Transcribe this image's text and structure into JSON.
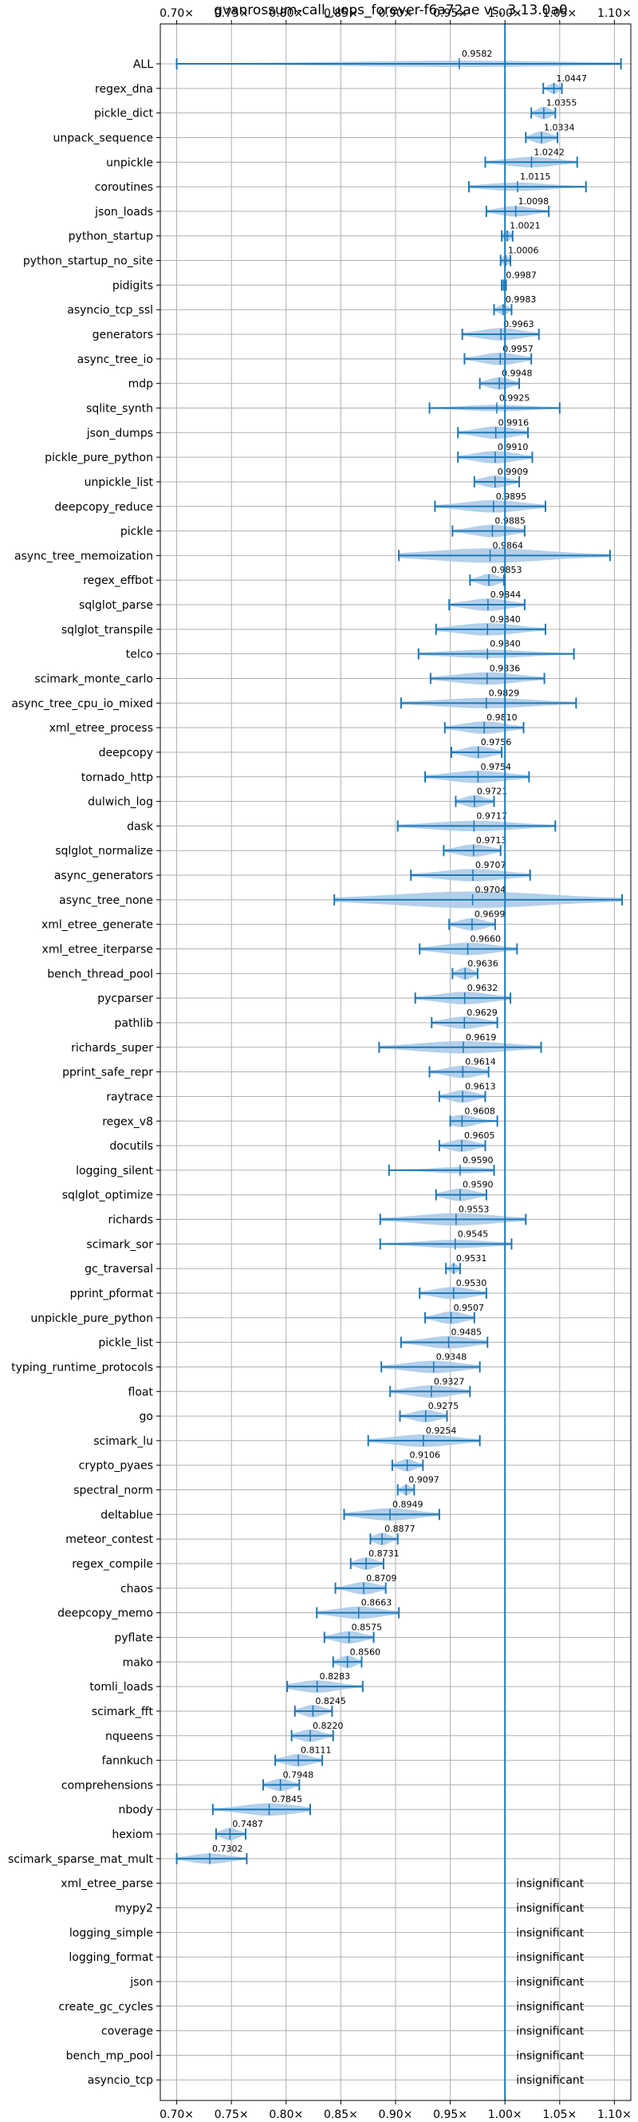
{
  "chart_data": {
    "type": "violin",
    "title": "gvanrossum-call_uops_forever-f6a72ae vs. 3.13.0a0",
    "xlim": [
      0.685,
      1.115
    ],
    "x_ticks": [
      0.7,
      0.75,
      0.8,
      0.85,
      0.9,
      0.95,
      1.0,
      1.05,
      1.1
    ],
    "x_tick_labels": [
      "0.70×",
      "0.75×",
      "0.80×",
      "0.85×",
      "0.90×",
      "0.95×",
      "1.00×",
      "1.05×",
      "1.10×"
    ],
    "reference_line": 1.0,
    "grid": true,
    "colors": {
      "violin": "#a6c8e8",
      "line": "#1f77b4",
      "grid": "#b0b0b0"
    },
    "insignificant_label": "insignificant",
    "benchmarks": [
      {
        "name": "ALL",
        "value": 0.9582,
        "label": "0.9582",
        "min": 0.7,
        "max": 1.106,
        "width": 0.25
      },
      {
        "name": "regex_dna",
        "value": 1.0447,
        "label": "1.0447",
        "min": 1.035,
        "max": 1.052,
        "width": 0.5
      },
      {
        "name": "pickle_dict",
        "value": 1.0355,
        "label": "1.0355",
        "min": 1.024,
        "max": 1.046,
        "width": 0.6
      },
      {
        "name": "unpack_sequence",
        "value": 1.0334,
        "label": "1.0334",
        "min": 1.019,
        "max": 1.048,
        "width": 0.6
      },
      {
        "name": "unpickle",
        "value": 1.0242,
        "label": "1.0242",
        "min": 0.982,
        "max": 1.066,
        "width": 0.5
      },
      {
        "name": "coroutines",
        "value": 1.0115,
        "label": "1.0115",
        "min": 0.967,
        "max": 1.074,
        "width": 0.4
      },
      {
        "name": "json_loads",
        "value": 1.0098,
        "label": "1.0098",
        "min": 0.983,
        "max": 1.04,
        "width": 0.5
      },
      {
        "name": "python_startup",
        "value": 1.0021,
        "label": "1.0021",
        "min": 0.997,
        "max": 1.007,
        "width": 0.5
      },
      {
        "name": "python_startup_no_site",
        "value": 1.0006,
        "label": "1.0006",
        "min": 0.996,
        "max": 1.005,
        "width": 0.5
      },
      {
        "name": "pidigits",
        "value": 0.9987,
        "label": "0.9987",
        "min": 0.997,
        "max": 1.001,
        "width": 0.5
      },
      {
        "name": "asyncio_tcp_ssl",
        "value": 0.9983,
        "label": "0.9983",
        "min": 0.99,
        "max": 1.006,
        "width": 0.5
      },
      {
        "name": "generators",
        "value": 0.9963,
        "label": "0.9963",
        "min": 0.961,
        "max": 1.031,
        "width": 0.6
      },
      {
        "name": "async_tree_io",
        "value": 0.9957,
        "label": "0.9957",
        "min": 0.963,
        "max": 1.024,
        "width": 0.6
      },
      {
        "name": "mdp",
        "value": 0.9948,
        "label": "0.9948",
        "min": 0.977,
        "max": 1.013,
        "width": 0.6
      },
      {
        "name": "sqlite_synth",
        "value": 0.9925,
        "label": "0.9925",
        "min": 0.931,
        "max": 1.05,
        "width": 0.3
      },
      {
        "name": "json_dumps",
        "value": 0.9916,
        "label": "0.9916",
        "min": 0.957,
        "max": 1.021,
        "width": 0.6
      },
      {
        "name": "pickle_pure_python",
        "value": 0.991,
        "label": "0.9910",
        "min": 0.957,
        "max": 1.025,
        "width": 0.6
      },
      {
        "name": "unpickle_list",
        "value": 0.9909,
        "label": "0.9909",
        "min": 0.972,
        "max": 1.013,
        "width": 0.6
      },
      {
        "name": "deepcopy_reduce",
        "value": 0.9895,
        "label": "0.9895",
        "min": 0.936,
        "max": 1.037,
        "width": 0.6
      },
      {
        "name": "pickle",
        "value": 0.9885,
        "label": "0.9885",
        "min": 0.952,
        "max": 1.018,
        "width": 0.6
      },
      {
        "name": "async_tree_memoization",
        "value": 0.9864,
        "label": "0.9864",
        "min": 0.903,
        "max": 1.096,
        "width": 0.7
      },
      {
        "name": "regex_effbot",
        "value": 0.9853,
        "label": "0.9853",
        "min": 0.968,
        "max": 0.999,
        "width": 0.6
      },
      {
        "name": "sqlglot_parse",
        "value": 0.9844,
        "label": "0.9844",
        "min": 0.949,
        "max": 1.018,
        "width": 0.6
      },
      {
        "name": "sqlglot_transpile",
        "value": 0.984,
        "label": "0.9840",
        "min": 0.937,
        "max": 1.037,
        "width": 0.6
      },
      {
        "name": "telco",
        "value": 0.984,
        "label": "0.9840",
        "min": 0.921,
        "max": 1.063,
        "width": 0.4
      },
      {
        "name": "scimark_monte_carlo",
        "value": 0.9836,
        "label": "0.9836",
        "min": 0.932,
        "max": 1.036,
        "width": 0.6
      },
      {
        "name": "async_tree_cpu_io_mixed",
        "value": 0.9829,
        "label": "0.9829",
        "min": 0.905,
        "max": 1.065,
        "width": 0.5
      },
      {
        "name": "xml_etree_process",
        "value": 0.981,
        "label": "0.9810",
        "min": 0.945,
        "max": 1.017,
        "width": 0.6
      },
      {
        "name": "deepcopy",
        "value": 0.9756,
        "label": "0.9756",
        "min": 0.951,
        "max": 0.997,
        "width": 0.6
      },
      {
        "name": "tornado_http",
        "value": 0.9754,
        "label": "0.9754",
        "min": 0.927,
        "max": 1.022,
        "width": 0.6
      },
      {
        "name": "dulwich_log",
        "value": 0.9721,
        "label": "0.9721",
        "min": 0.955,
        "max": 0.99,
        "width": 0.6
      },
      {
        "name": "dask",
        "value": 0.9717,
        "label": "0.9717",
        "min": 0.902,
        "max": 1.046,
        "width": 0.5
      },
      {
        "name": "sqlglot_normalize",
        "value": 0.9713,
        "label": "0.9713",
        "min": 0.944,
        "max": 0.996,
        "width": 0.6
      },
      {
        "name": "async_generators",
        "value": 0.9707,
        "label": "0.9707",
        "min": 0.914,
        "max": 1.023,
        "width": 0.6
      },
      {
        "name": "async_tree_none",
        "value": 0.9704,
        "label": "0.9704",
        "min": 0.844,
        "max": 1.107,
        "width": 0.8
      },
      {
        "name": "xml_etree_generate",
        "value": 0.9699,
        "label": "0.9699",
        "min": 0.949,
        "max": 0.991,
        "width": 0.6
      },
      {
        "name": "xml_etree_iterparse",
        "value": 0.966,
        "label": "0.9660",
        "min": 0.922,
        "max": 1.011,
        "width": 0.6
      },
      {
        "name": "bench_thread_pool",
        "value": 0.9636,
        "label": "0.9636",
        "min": 0.952,
        "max": 0.975,
        "width": 0.6
      },
      {
        "name": "pycparser",
        "value": 0.9632,
        "label": "0.9632",
        "min": 0.918,
        "max": 1.005,
        "width": 0.6
      },
      {
        "name": "pathlib",
        "value": 0.9629,
        "label": "0.9629",
        "min": 0.933,
        "max": 0.993,
        "width": 0.6
      },
      {
        "name": "richards_super",
        "value": 0.9619,
        "label": "0.9619",
        "min": 0.885,
        "max": 1.033,
        "width": 0.6
      },
      {
        "name": "pprint_safe_repr",
        "value": 0.9614,
        "label": "0.9614",
        "min": 0.931,
        "max": 0.985,
        "width": 0.6
      },
      {
        "name": "raytrace",
        "value": 0.9613,
        "label": "0.9613",
        "min": 0.94,
        "max": 0.982,
        "width": 0.6
      },
      {
        "name": "regex_v8",
        "value": 0.9608,
        "label": "0.9608",
        "min": 0.95,
        "max": 0.993,
        "width": 0.6
      },
      {
        "name": "docutils",
        "value": 0.9605,
        "label": "0.9605",
        "min": 0.94,
        "max": 0.982,
        "width": 0.6
      },
      {
        "name": "logging_silent",
        "value": 0.959,
        "label": "0.9590",
        "min": 0.894,
        "max": 0.99,
        "width": 0.3
      },
      {
        "name": "sqlglot_optimize",
        "value": 0.959,
        "label": "0.9590",
        "min": 0.937,
        "max": 0.983,
        "width": 0.6
      },
      {
        "name": "richards",
        "value": 0.9553,
        "label": "0.9553",
        "min": 0.886,
        "max": 1.019,
        "width": 0.6
      },
      {
        "name": "scimark_sor",
        "value": 0.9545,
        "label": "0.9545",
        "min": 0.886,
        "max": 1.006,
        "width": 0.4
      },
      {
        "name": "gc_traversal",
        "value": 0.9531,
        "label": "0.9531",
        "min": 0.946,
        "max": 0.959,
        "width": 0.5
      },
      {
        "name": "pprint_pformat",
        "value": 0.953,
        "label": "0.9530",
        "min": 0.922,
        "max": 0.983,
        "width": 0.6
      },
      {
        "name": "unpickle_pure_python",
        "value": 0.9507,
        "label": "0.9507",
        "min": 0.927,
        "max": 0.972,
        "width": 0.6
      },
      {
        "name": "pickle_list",
        "value": 0.9485,
        "label": "0.9485",
        "min": 0.905,
        "max": 0.984,
        "width": 0.6
      },
      {
        "name": "typing_runtime_protocols",
        "value": 0.9348,
        "label": "0.9348",
        "min": 0.887,
        "max": 0.977,
        "width": 0.6
      },
      {
        "name": "float",
        "value": 0.9327,
        "label": "0.9327",
        "min": 0.895,
        "max": 0.968,
        "width": 0.6
      },
      {
        "name": "go",
        "value": 0.9275,
        "label": "0.9275",
        "min": 0.904,
        "max": 0.947,
        "width": 0.6
      },
      {
        "name": "scimark_lu",
        "value": 0.9254,
        "label": "0.9254",
        "min": 0.875,
        "max": 0.977,
        "width": 0.6
      },
      {
        "name": "crypto_pyaes",
        "value": 0.9106,
        "label": "0.9106",
        "min": 0.897,
        "max": 0.925,
        "width": 0.6
      },
      {
        "name": "spectral_norm",
        "value": 0.9097,
        "label": "0.9097",
        "min": 0.902,
        "max": 0.917,
        "width": 0.5
      },
      {
        "name": "deltablue",
        "value": 0.8949,
        "label": "0.8949",
        "min": 0.853,
        "max": 0.94,
        "width": 0.6
      },
      {
        "name": "meteor_contest",
        "value": 0.8877,
        "label": "0.8877",
        "min": 0.877,
        "max": 0.902,
        "width": 0.6
      },
      {
        "name": "regex_compile",
        "value": 0.8731,
        "label": "0.8731",
        "min": 0.859,
        "max": 0.889,
        "width": 0.6
      },
      {
        "name": "chaos",
        "value": 0.8709,
        "label": "0.8709",
        "min": 0.845,
        "max": 0.891,
        "width": 0.6
      },
      {
        "name": "deepcopy_memo",
        "value": 0.8663,
        "label": "0.8663",
        "min": 0.828,
        "max": 0.903,
        "width": 0.6
      },
      {
        "name": "pyflate",
        "value": 0.8575,
        "label": "0.8575",
        "min": 0.835,
        "max": 0.88,
        "width": 0.6
      },
      {
        "name": "mako",
        "value": 0.856,
        "label": "0.8560",
        "min": 0.843,
        "max": 0.869,
        "width": 0.6
      },
      {
        "name": "tomli_loads",
        "value": 0.8283,
        "label": "0.8283",
        "min": 0.801,
        "max": 0.87,
        "width": 0.6
      },
      {
        "name": "scimark_fft",
        "value": 0.8245,
        "label": "0.8245",
        "min": 0.808,
        "max": 0.842,
        "width": 0.6
      },
      {
        "name": "nqueens",
        "value": 0.822,
        "label": "0.8220",
        "min": 0.805,
        "max": 0.843,
        "width": 0.6
      },
      {
        "name": "fannkuch",
        "value": 0.8111,
        "label": "0.8111",
        "min": 0.79,
        "max": 0.833,
        "width": 0.6
      },
      {
        "name": "comprehensions",
        "value": 0.7948,
        "label": "0.7948",
        "min": 0.779,
        "max": 0.812,
        "width": 0.6
      },
      {
        "name": "nbody",
        "value": 0.7845,
        "label": "0.7845",
        "min": 0.733,
        "max": 0.822,
        "width": 0.6
      },
      {
        "name": "hexiom",
        "value": 0.7487,
        "label": "0.7487",
        "min": 0.736,
        "max": 0.763,
        "width": 0.6
      },
      {
        "name": "scimark_sparse_mat_mult",
        "value": 0.7302,
        "label": "0.7302",
        "min": 0.7,
        "max": 0.764,
        "width": 0.5
      },
      {
        "name": "xml_etree_parse",
        "insignificant": true
      },
      {
        "name": "mypy2",
        "insignificant": true
      },
      {
        "name": "logging_simple",
        "insignificant": true
      },
      {
        "name": "logging_format",
        "insignificant": true
      },
      {
        "name": "json",
        "insignificant": true
      },
      {
        "name": "create_gc_cycles",
        "insignificant": true
      },
      {
        "name": "coverage",
        "insignificant": true
      },
      {
        "name": "bench_mp_pool",
        "insignificant": true
      },
      {
        "name": "asyncio_tcp",
        "insignificant": true
      }
    ]
  }
}
